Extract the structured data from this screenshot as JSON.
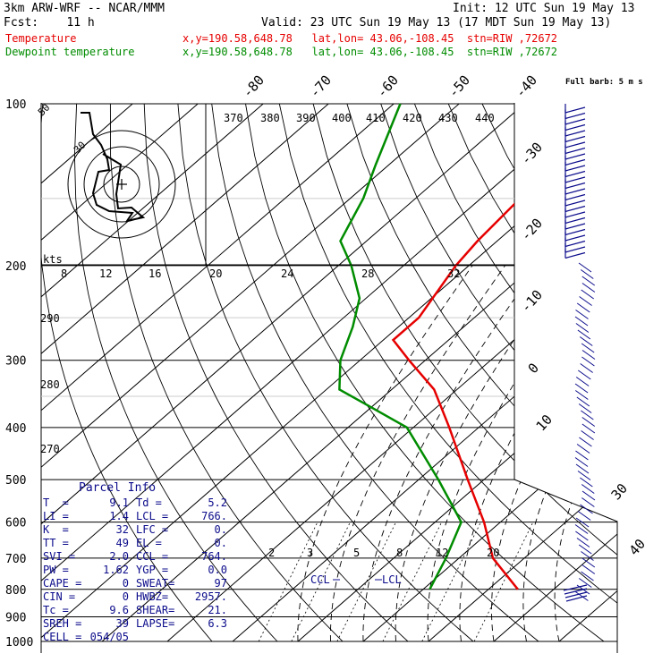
{
  "header": {
    "model": "3km ARW-WRF -- NCAR/MMM",
    "init": "Init: 12 UTC Sun 19 May 13",
    "fcst": "Fcst:    11 h",
    "valid": "Valid: 23 UTC Sun 19 May 13 (17 MDT Sun 19 May 13)",
    "temp_label": "Temperature",
    "dew_label": "Dewpoint temperature",
    "coords": "x,y=190.58,648.78   lat,lon= 43.06,-108.45  stn=RIW ,72672",
    "wind_legend": "Full barb: 5 m s"
  },
  "colors": {
    "temperature": "#e60000",
    "dewpoint": "#008c00",
    "wind": "#0c0c8c",
    "parcel_text": "#0c0c8c"
  },
  "chart_data": {
    "type": "skew-t log-p",
    "pressure_levels": [
      100,
      200,
      300,
      400,
      500,
      600,
      700,
      800,
      900,
      1000
    ],
    "isotherm_labels": [
      "-80",
      "-70",
      "-60",
      "-50",
      "-40",
      "-30",
      "-20",
      "-10",
      "0",
      "10",
      "20",
      "30",
      "40"
    ],
    "theta_labels": [
      "370",
      "380",
      "390",
      "400",
      "410",
      "420",
      "430",
      "440"
    ],
    "thetae_labels": [
      "290",
      "280",
      "270"
    ],
    "mixing_labels": [
      "2",
      "3",
      "5",
      "8",
      "12",
      "20"
    ],
    "inset_labels": {
      "kts": "kts",
      "ticks": [
        "8",
        "12",
        "16",
        "20",
        "24",
        "28",
        "32"
      ],
      "ring": "50",
      "ring2": "30"
    },
    "temperature": [
      {
        "p": 1000,
        "t": null
      },
      {
        "p": 800,
        "t": 14.5
      },
      {
        "p": 700,
        "t": 5.2
      },
      {
        "p": 600,
        "t": -2.5
      },
      {
        "p": 500,
        "t": -12.5
      },
      {
        "p": 400,
        "t": -24.5
      },
      {
        "p": 340,
        "t": -33.5
      },
      {
        "p": 300,
        "t": -42.5
      },
      {
        "p": 275,
        "t": -48.5
      },
      {
        "p": 250,
        "t": -48.5
      },
      {
        "p": 200,
        "t": -52.0
      },
      {
        "p": 180,
        "t": -53.0
      },
      {
        "p": 150,
        "t": -54.0
      },
      {
        "p": 120,
        "t": -58.0
      },
      {
        "p": 100,
        "t": -60.5
      }
    ],
    "dewpoint": [
      {
        "p": 800,
        "t": 1.0
      },
      {
        "p": 700,
        "t": -2.0
      },
      {
        "p": 600,
        "t": -6.0
      },
      {
        "p": 500,
        "t": -17.0
      },
      {
        "p": 400,
        "t": -31.0
      },
      {
        "p": 360,
        "t": -42.0
      },
      {
        "p": 340,
        "t": -48.0
      },
      {
        "p": 300,
        "t": -53.0
      },
      {
        "p": 260,
        "t": -57.0
      },
      {
        "p": 230,
        "t": -61.0
      },
      {
        "p": 200,
        "t": -68.0
      },
      {
        "p": 180,
        "t": -74.0
      },
      {
        "p": 150,
        "t": -78.0
      },
      {
        "p": 130,
        "t": -82.0
      },
      {
        "p": 100,
        "t": -89.0
      }
    ],
    "parcel_marks": [
      "CCL",
      "LCL"
    ],
    "parcel_info_title": "Parcel Info",
    "parcel_info": [
      [
        "T  =",
        "9.1",
        "Td =",
        "5.2"
      ],
      [
        "LI =",
        "1.4",
        "LCL =",
        "766."
      ],
      [
        "K  =",
        "32",
        "LFC =",
        "0."
      ],
      [
        "TT =",
        "49",
        "EL =",
        "0."
      ],
      [
        "SVI =",
        "2.0",
        "CCL =",
        "764."
      ],
      [
        "PW =",
        "1.62",
        "YGP =",
        "0.0"
      ],
      [
        "CAPE =",
        "0",
        "SWEAT=",
        "97"
      ],
      [
        "CIN =",
        "0",
        "HWBZ=",
        "2957."
      ],
      [
        "Tc =",
        "9.6",
        "SHEAR=",
        "21."
      ],
      [
        "SREH =",
        "39",
        "LAPSE=",
        "6.3"
      ],
      [
        "CELL =",
        "054/05",
        "",
        ""
      ]
    ]
  }
}
